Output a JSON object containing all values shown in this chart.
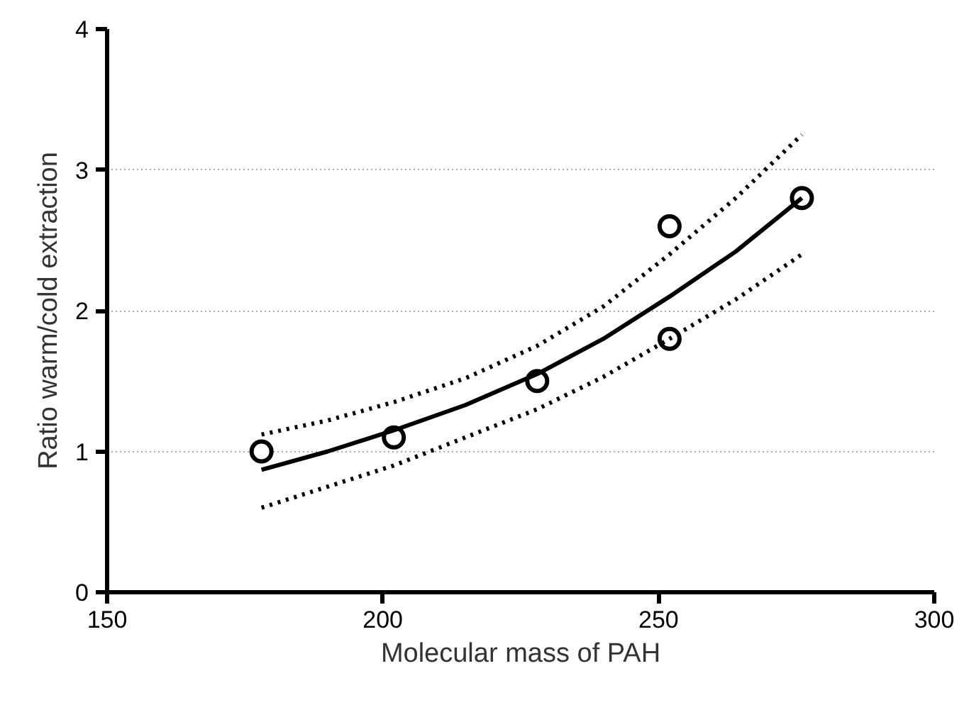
{
  "chart_data": {
    "type": "scatter",
    "xlabel": "Molecular mass of PAH",
    "ylabel": "Ratio warm/cold extraction",
    "xlim": [
      150,
      300
    ],
    "ylim": [
      0,
      4
    ],
    "xticks": [
      150,
      200,
      250,
      300
    ],
    "yticks": [
      0,
      1,
      2,
      3,
      4
    ],
    "grid": "y",
    "series": [
      {
        "marker": "circle",
        "color": "#000000",
        "x": [
          178,
          202,
          228,
          252,
          252,
          276
        ],
        "values": [
          1.0,
          1.1,
          1.5,
          2.6,
          1.8,
          2.8
        ]
      },
      {
        "type": "line",
        "marker": "none",
        "color": "#000000",
        "line_style": "solid",
        "x": [
          178,
          190,
          202,
          215,
          228,
          240,
          252,
          264,
          276
        ],
        "values": [
          0.87,
          1.0,
          1.15,
          1.33,
          1.55,
          1.8,
          2.1,
          2.42,
          2.8
        ]
      },
      {
        "type": "line",
        "marker": "none",
        "color": "#000000",
        "line_style": "dotted",
        "x": [
          178,
          190,
          202,
          215,
          228,
          240,
          252,
          264,
          276
        ],
        "values": [
          1.12,
          1.22,
          1.35,
          1.52,
          1.75,
          2.03,
          2.4,
          2.8,
          3.25
        ]
      },
      {
        "type": "line",
        "marker": "none",
        "color": "#000000",
        "line_style": "dotted",
        "x": [
          178,
          190,
          202,
          215,
          228,
          240,
          252,
          264,
          276
        ],
        "values": [
          0.6,
          0.75,
          0.9,
          1.1,
          1.3,
          1.53,
          1.8,
          2.08,
          2.4
        ]
      }
    ]
  }
}
